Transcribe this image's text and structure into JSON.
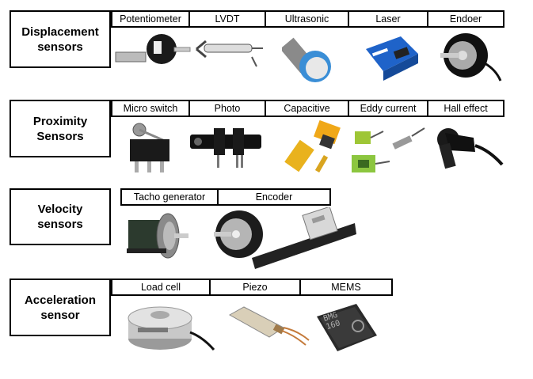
{
  "rows": [
    {
      "category": "Displacement\nsensors",
      "items": [
        {
          "label": "Potentiometer",
          "icon": "potentiometer-icon"
        },
        {
          "label": "LVDT",
          "icon": "lvdt-icon"
        },
        {
          "label": "Ultrasonic",
          "icon": "ultrasonic-sensor-icon"
        },
        {
          "label": "Laser",
          "icon": "laser-sensor-icon"
        },
        {
          "label": "Endoer",
          "icon": "rotary-encoder-icon"
        }
      ]
    },
    {
      "category": "Proximity\nSensors",
      "items": [
        {
          "label": "Micro switch",
          "icon": "micro-switch-icon"
        },
        {
          "label": "Photo",
          "icon": "photo-interrupter-icon"
        },
        {
          "label": "Capacitive",
          "icon": "capacitive-sensor-icon"
        },
        {
          "label": "Eddy current",
          "icon": "eddy-current-sensor-icon"
        },
        {
          "label": "Hall effect",
          "icon": "hall-effect-sensor-icon"
        }
      ]
    },
    {
      "category": "Velocity\nsensors",
      "items": [
        {
          "label": "Tacho generator",
          "icon": "tacho-generator-icon"
        },
        {
          "label": "Encoder",
          "icon": "linear-encoder-icon"
        }
      ]
    },
    {
      "category": "Acceleration\nsensor",
      "items": [
        {
          "label": "Load cell",
          "icon": "load-cell-icon"
        },
        {
          "label": "Piezo",
          "icon": "piezo-sensor-icon"
        },
        {
          "label": "MEMS",
          "icon": "mems-chip-icon"
        }
      ],
      "chip_text": "BMG\n160"
    }
  ]
}
